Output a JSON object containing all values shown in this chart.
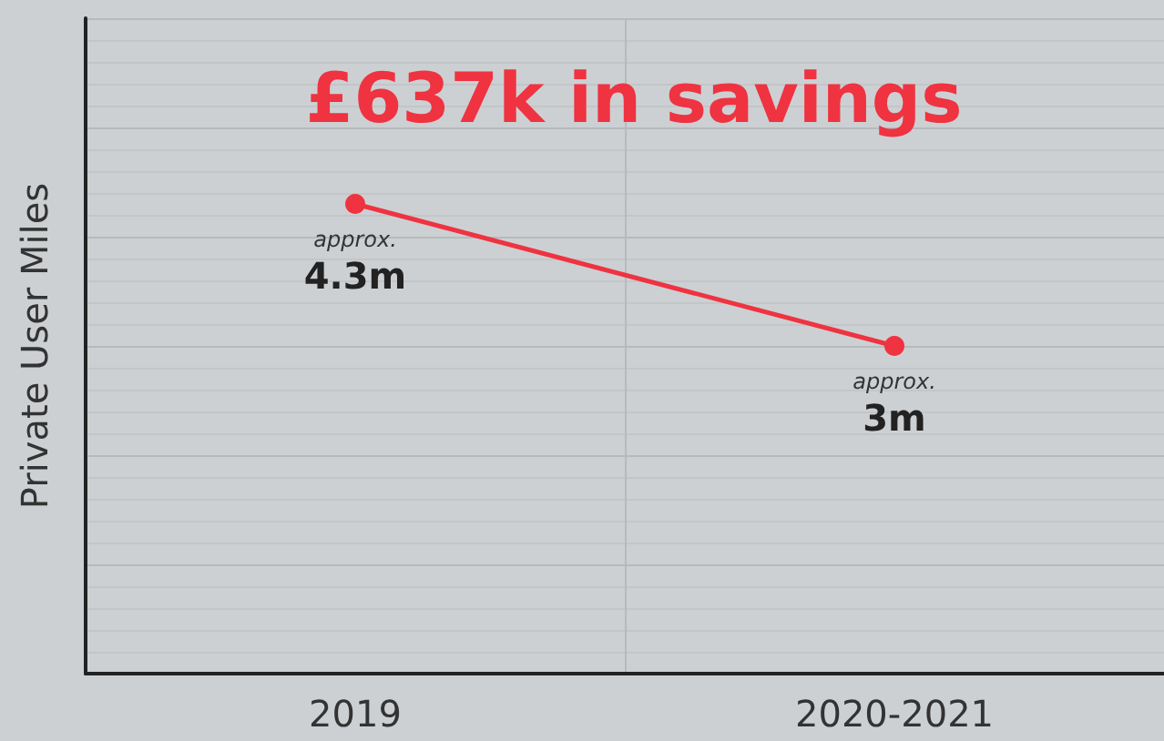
{
  "chart_data": {
    "type": "line",
    "title": "£637k in savings",
    "ylabel": "Private User Miles",
    "categories": [
      "2019",
      "2020-2021"
    ],
    "series": [
      {
        "color": "#ef3340",
        "values": [
          4.3,
          3
        ],
        "value_labels": [
          "approx.\n4.3m",
          "approx.\n3m"
        ]
      }
    ],
    "ylim": [
      0,
      6
    ],
    "yticks": [
      {
        "value": 0,
        "label": null
      },
      {
        "value": 1,
        "label": null
      },
      {
        "value": 2,
        "label": null
      },
      {
        "value": 3,
        "label": null
      },
      {
        "value": 4,
        "label": null
      },
      {
        "value": 5,
        "label": null
      },
      {
        "value": 6,
        "label": null
      }
    ],
    "tick_labels": "x",
    "grid": true,
    "marker": "circle",
    "line_style": "solid"
  }
}
